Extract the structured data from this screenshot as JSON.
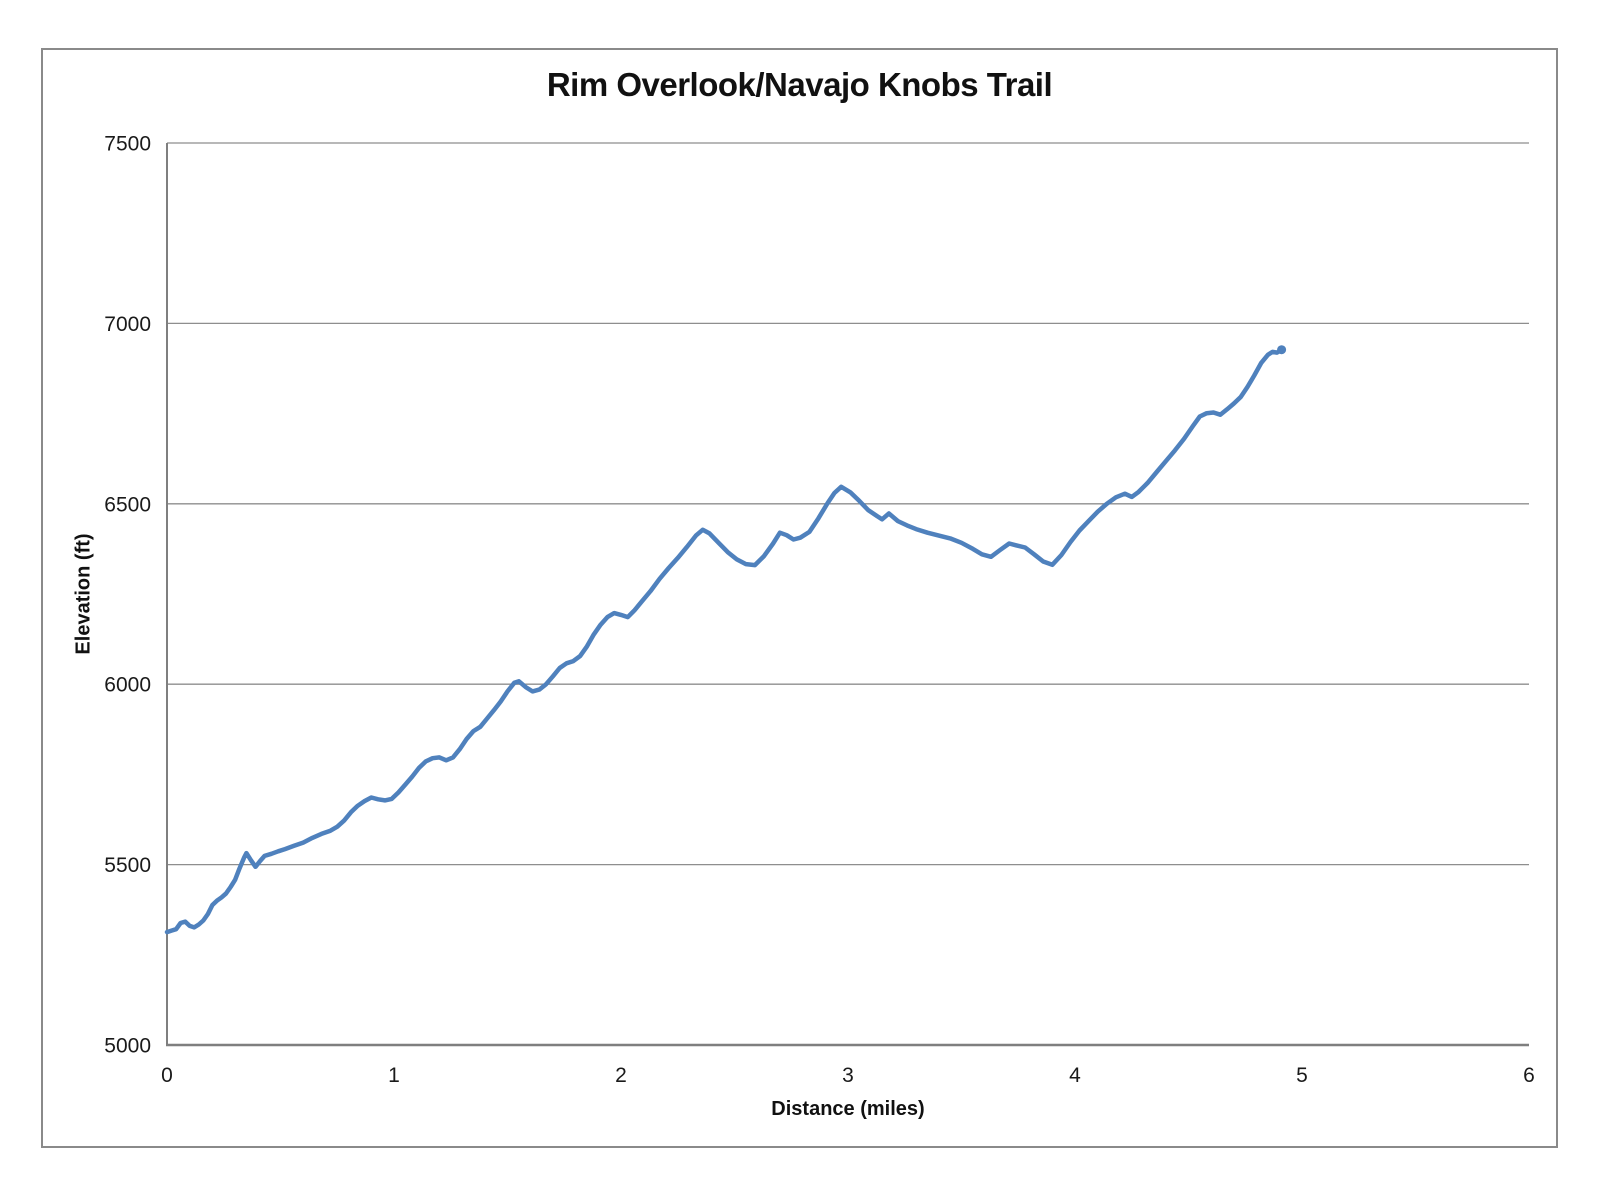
{
  "chart_data": {
    "type": "line",
    "title": "Rim Overlook/Navajo Knobs Trail",
    "xlabel": "Distance (miles)",
    "ylabel": "Elevation (ft)",
    "xlim": [
      0,
      6
    ],
    "ylim": [
      5000,
      7500
    ],
    "x_ticks": [
      0,
      1,
      2,
      3,
      4,
      5,
      6
    ],
    "y_ticks": [
      5000,
      5500,
      6000,
      6500,
      7000,
      7500
    ],
    "grid": "horizontal-only",
    "legend": "none",
    "colors": {
      "series": "#4F81BD",
      "gridline": "#8e8e8e",
      "axis": "#7f7f7f",
      "frame_border": "#8a8a8a",
      "text": "#1a1a1a",
      "background": "#ffffff"
    },
    "series": [
      {
        "name": "Elevation profile",
        "color": "#4F81BD",
        "line_width": 4.5,
        "end_marker": true,
        "points": [
          [
            0.0,
            5313
          ],
          [
            0.02,
            5317
          ],
          [
            0.04,
            5321
          ],
          [
            0.06,
            5338
          ],
          [
            0.08,
            5342
          ],
          [
            0.1,
            5330
          ],
          [
            0.12,
            5326
          ],
          [
            0.14,
            5334
          ],
          [
            0.16,
            5345
          ],
          [
            0.18,
            5363
          ],
          [
            0.2,
            5388
          ],
          [
            0.22,
            5400
          ],
          [
            0.24,
            5409
          ],
          [
            0.26,
            5420
          ],
          [
            0.28,
            5438
          ],
          [
            0.3,
            5458
          ],
          [
            0.32,
            5490
          ],
          [
            0.34,
            5520
          ],
          [
            0.35,
            5532
          ],
          [
            0.37,
            5512
          ],
          [
            0.39,
            5494
          ],
          [
            0.41,
            5510
          ],
          [
            0.43,
            5524
          ],
          [
            0.46,
            5530
          ],
          [
            0.49,
            5537
          ],
          [
            0.52,
            5543
          ],
          [
            0.56,
            5552
          ],
          [
            0.6,
            5561
          ],
          [
            0.64,
            5574
          ],
          [
            0.68,
            5585
          ],
          [
            0.72,
            5594
          ],
          [
            0.75,
            5605
          ],
          [
            0.78,
            5622
          ],
          [
            0.81,
            5645
          ],
          [
            0.84,
            5663
          ],
          [
            0.87,
            5676
          ],
          [
            0.9,
            5686
          ],
          [
            0.93,
            5681
          ],
          [
            0.96,
            5678
          ],
          [
            0.99,
            5682
          ],
          [
            1.02,
            5700
          ],
          [
            1.05,
            5722
          ],
          [
            1.08,
            5744
          ],
          [
            1.11,
            5768
          ],
          [
            1.14,
            5786
          ],
          [
            1.17,
            5795
          ],
          [
            1.2,
            5797
          ],
          [
            1.23,
            5789
          ],
          [
            1.26,
            5797
          ],
          [
            1.29,
            5820
          ],
          [
            1.32,
            5848
          ],
          [
            1.35,
            5870
          ],
          [
            1.38,
            5882
          ],
          [
            1.41,
            5905
          ],
          [
            1.44,
            5928
          ],
          [
            1.47,
            5952
          ],
          [
            1.5,
            5980
          ],
          [
            1.53,
            6004
          ],
          [
            1.55,
            6008
          ],
          [
            1.58,
            5992
          ],
          [
            1.61,
            5980
          ],
          [
            1.64,
            5985
          ],
          [
            1.67,
            6000
          ],
          [
            1.7,
            6022
          ],
          [
            1.73,
            6045
          ],
          [
            1.76,
            6058
          ],
          [
            1.79,
            6064
          ],
          [
            1.82,
            6078
          ],
          [
            1.85,
            6105
          ],
          [
            1.88,
            6138
          ],
          [
            1.91,
            6165
          ],
          [
            1.94,
            6186
          ],
          [
            1.97,
            6197
          ],
          [
            2.0,
            6192
          ],
          [
            2.03,
            6186
          ],
          [
            2.06,
            6205
          ],
          [
            2.09,
            6228
          ],
          [
            2.13,
            6258
          ],
          [
            2.17,
            6292
          ],
          [
            2.21,
            6322
          ],
          [
            2.25,
            6350
          ],
          [
            2.29,
            6380
          ],
          [
            2.33,
            6412
          ],
          [
            2.36,
            6428
          ],
          [
            2.39,
            6418
          ],
          [
            2.43,
            6392
          ],
          [
            2.47,
            6366
          ],
          [
            2.51,
            6346
          ],
          [
            2.55,
            6333
          ],
          [
            2.59,
            6330
          ],
          [
            2.63,
            6355
          ],
          [
            2.67,
            6390
          ],
          [
            2.7,
            6420
          ],
          [
            2.73,
            6413
          ],
          [
            2.76,
            6401
          ],
          [
            2.79,
            6406
          ],
          [
            2.83,
            6422
          ],
          [
            2.87,
            6460
          ],
          [
            2.91,
            6502
          ],
          [
            2.94,
            6530
          ],
          [
            2.97,
            6547
          ],
          [
            3.01,
            6532
          ],
          [
            3.05,
            6508
          ],
          [
            3.09,
            6482
          ],
          [
            3.13,
            6465
          ],
          [
            3.15,
            6457
          ],
          [
            3.18,
            6473
          ],
          [
            3.22,
            6452
          ],
          [
            3.26,
            6440
          ],
          [
            3.3,
            6430
          ],
          [
            3.35,
            6420
          ],
          [
            3.4,
            6412
          ],
          [
            3.45,
            6404
          ],
          [
            3.5,
            6392
          ],
          [
            3.55,
            6375
          ],
          [
            3.59,
            6360
          ],
          [
            3.63,
            6353
          ],
          [
            3.67,
            6372
          ],
          [
            3.71,
            6390
          ],
          [
            3.74,
            6385
          ],
          [
            3.78,
            6379
          ],
          [
            3.82,
            6360
          ],
          [
            3.86,
            6340
          ],
          [
            3.9,
            6331
          ],
          [
            3.94,
            6358
          ],
          [
            3.98,
            6394
          ],
          [
            4.02,
            6426
          ],
          [
            4.06,
            6452
          ],
          [
            4.1,
            6478
          ],
          [
            4.14,
            6500
          ],
          [
            4.18,
            6518
          ],
          [
            4.22,
            6528
          ],
          [
            4.25,
            6519
          ],
          [
            4.28,
            6533
          ],
          [
            4.32,
            6558
          ],
          [
            4.36,
            6588
          ],
          [
            4.4,
            6618
          ],
          [
            4.44,
            6648
          ],
          [
            4.48,
            6680
          ],
          [
            4.52,
            6716
          ],
          [
            4.55,
            6742
          ],
          [
            4.58,
            6751
          ],
          [
            4.61,
            6753
          ],
          [
            4.64,
            6747
          ],
          [
            4.67,
            6762
          ],
          [
            4.7,
            6778
          ],
          [
            4.73,
            6796
          ],
          [
            4.76,
            6824
          ],
          [
            4.79,
            6856
          ],
          [
            4.82,
            6890
          ],
          [
            4.85,
            6913
          ],
          [
            4.87,
            6921
          ],
          [
            4.89,
            6919
          ],
          [
            4.91,
            6927
          ]
        ]
      }
    ]
  }
}
